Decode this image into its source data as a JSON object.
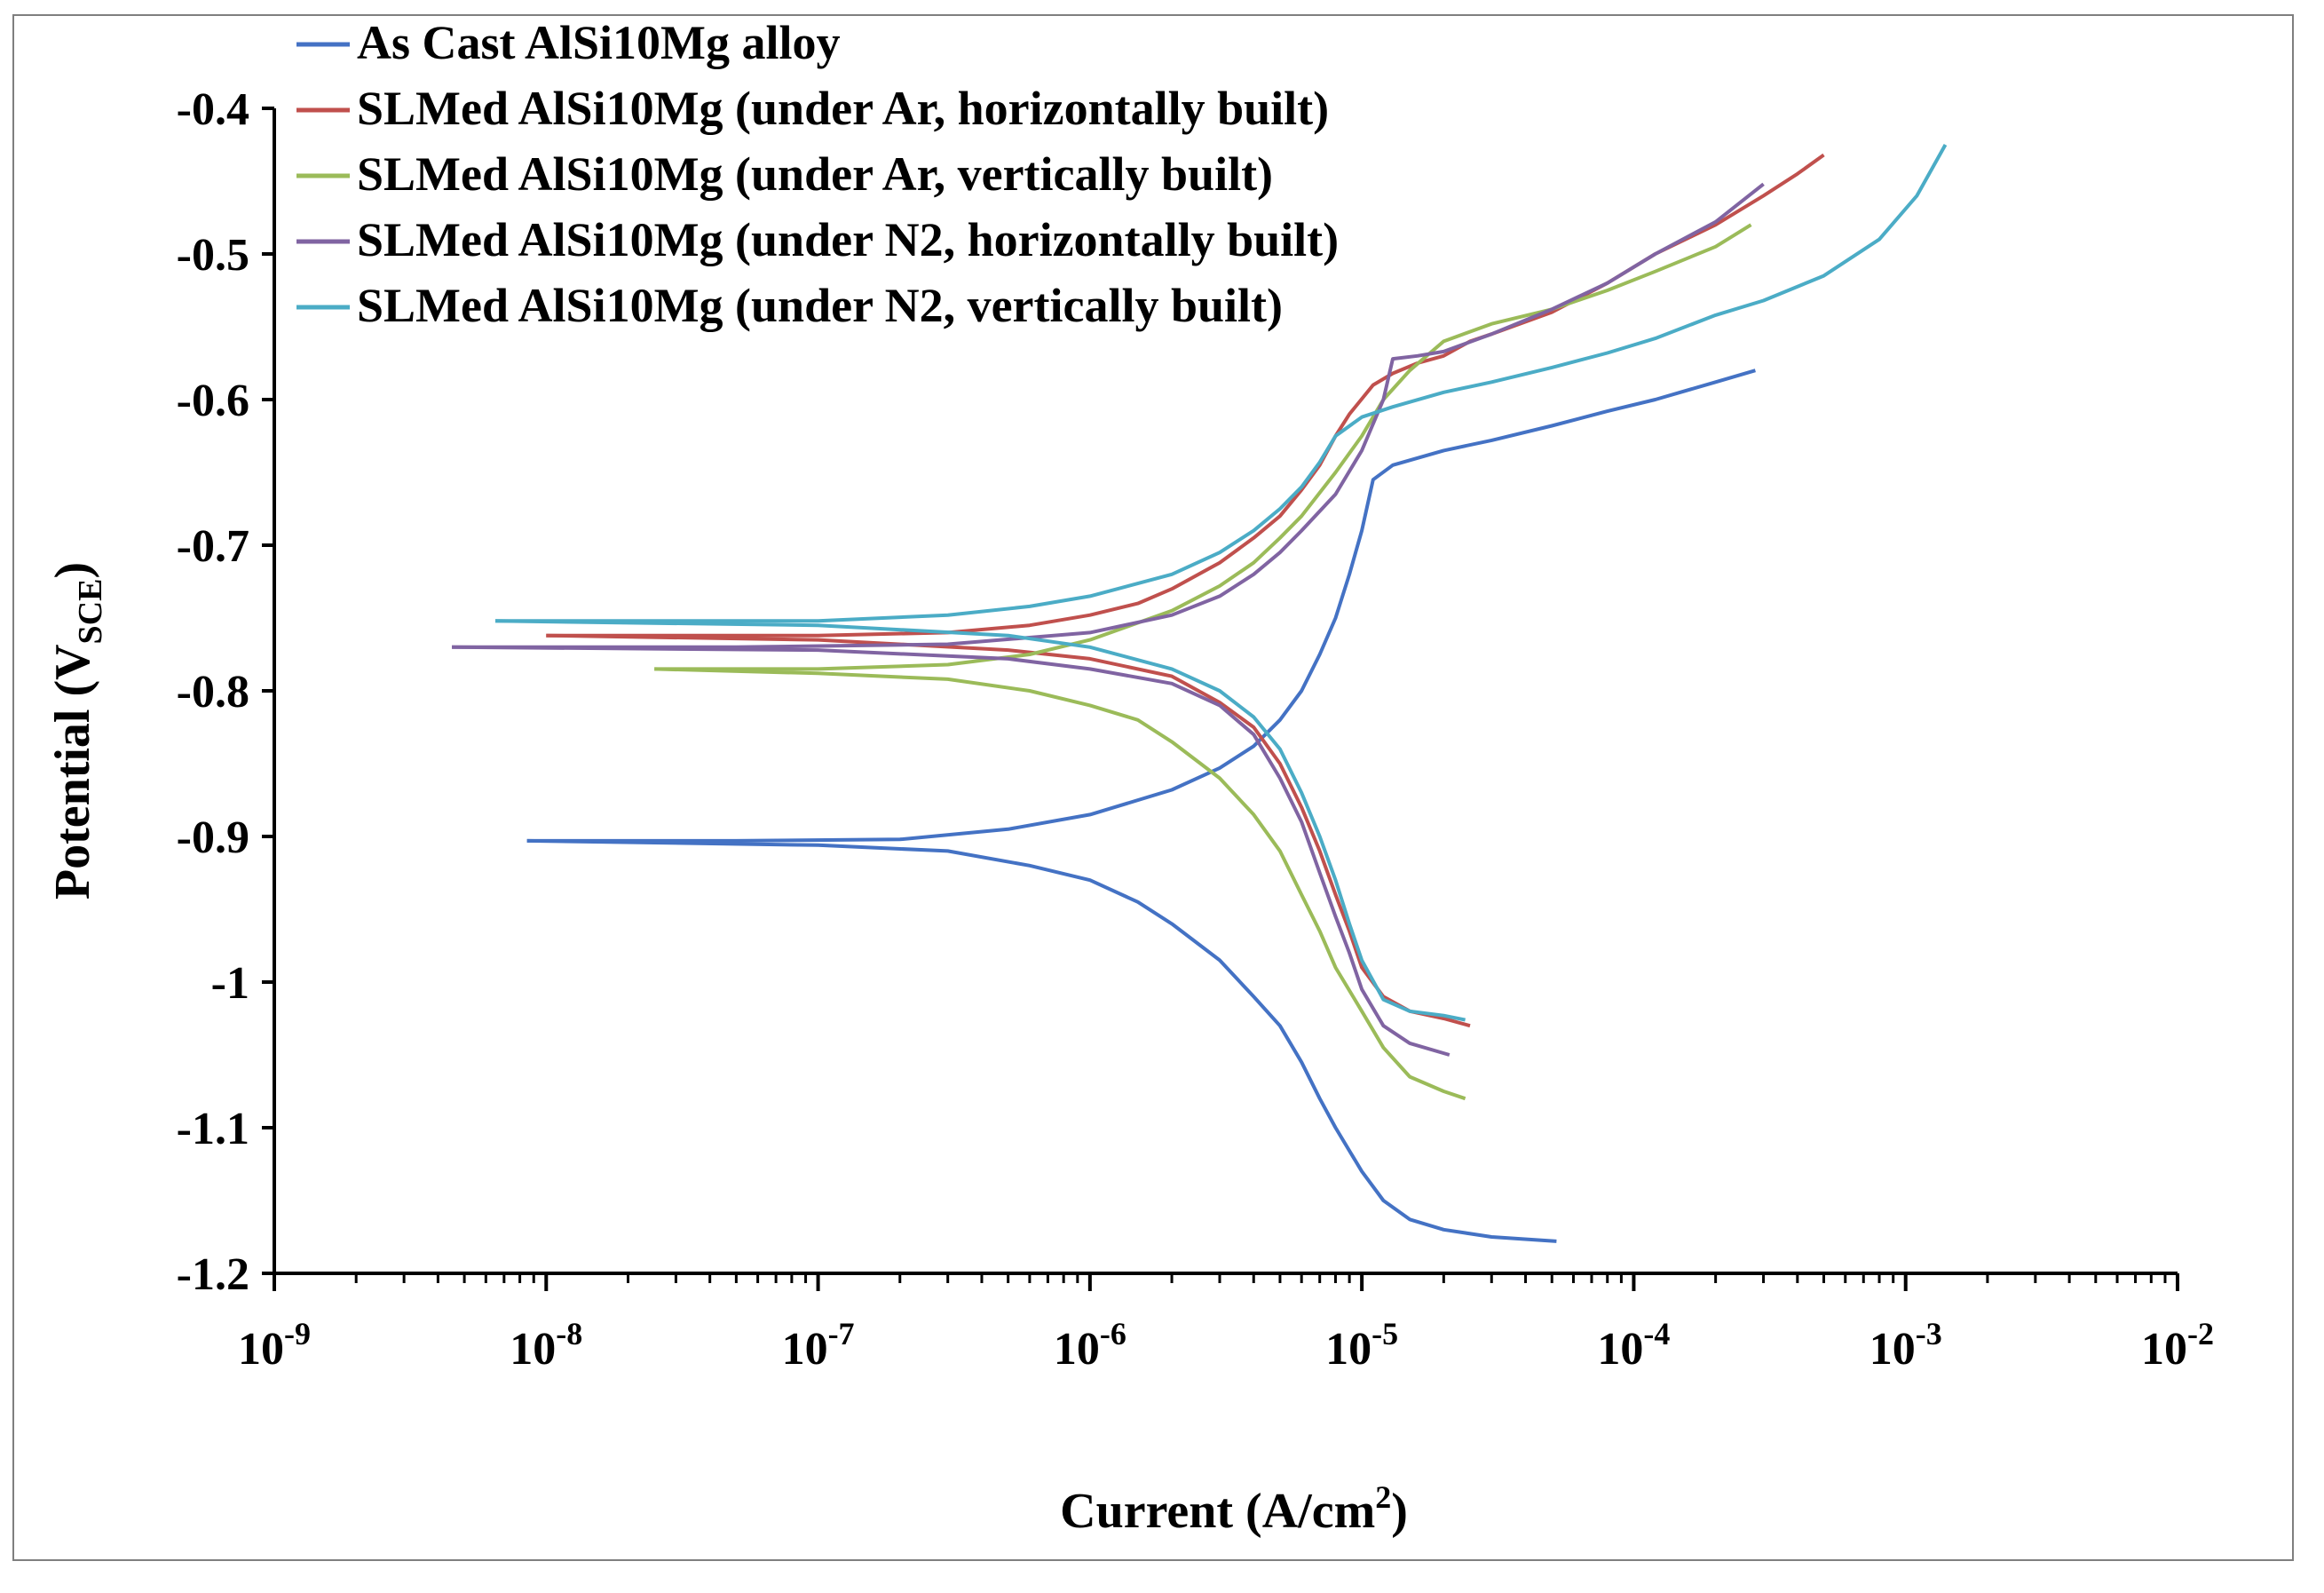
{
  "chart_data": {
    "type": "line",
    "title": "",
    "xlabel": "Current (A/cm",
    "xlabel_sup": "2",
    "xlabel_close": ")",
    "ylabel": "Potential (V",
    "ylabel_sub": "SCE",
    "ylabel_close": ")",
    "xscale": "log",
    "xlim": [
      1e-09,
      0.01
    ],
    "ylim": [
      -1.2,
      -0.4
    ],
    "x_ticks": [
      {
        "base": "10",
        "exp": "-9",
        "value": 1e-09
      },
      {
        "base": "10",
        "exp": "-8",
        "value": 1e-08
      },
      {
        "base": "10",
        "exp": "-7",
        "value": 1e-07
      },
      {
        "base": "10",
        "exp": "-6",
        "value": 1e-06
      },
      {
        "base": "10",
        "exp": "-5",
        "value": 1e-05
      },
      {
        "base": "10",
        "exp": "-4",
        "value": 0.0001
      },
      {
        "base": "10",
        "exp": "-3",
        "value": 0.001
      },
      {
        "base": "10",
        "exp": "-2",
        "value": 0.01
      }
    ],
    "y_ticks": [
      "-0.4",
      "-0.5",
      "-0.6",
      "-0.7",
      "-0.8",
      "-0.9",
      "-1",
      "-1.1",
      "-1.2"
    ],
    "grid": false,
    "legend_position": "top-left",
    "series": [
      {
        "name": "As Cast AlSi10Mg alloy",
        "color": "#4472C4",
        "branches": [
          [
            [
              8.5e-09,
              -0.903
            ],
            [
              5e-08,
              -0.903
            ],
            [
              2e-07,
              -0.902
            ],
            [
              5e-07,
              -0.895
            ],
            [
              1e-06,
              -0.885
            ],
            [
              2e-06,
              -0.868
            ],
            [
              3e-06,
              -0.853
            ],
            [
              4e-06,
              -0.838
            ],
            [
              5e-06,
              -0.82
            ],
            [
              6e-06,
              -0.8
            ],
            [
              7e-06,
              -0.775
            ],
            [
              8e-06,
              -0.75
            ],
            [
              9e-06,
              -0.72
            ],
            [
              1e-05,
              -0.69
            ],
            [
              1.1e-05,
              -0.655
            ],
            [
              1.3e-05,
              -0.645
            ],
            [
              2e-05,
              -0.635
            ],
            [
              3e-05,
              -0.628
            ],
            [
              5e-05,
              -0.618
            ],
            [
              8e-05,
              -0.608
            ],
            [
              0.00012,
              -0.6
            ],
            [
              0.0002,
              -0.588
            ],
            [
              0.00028,
              -0.58
            ]
          ],
          [
            [
              8.5e-09,
              -0.903
            ],
            [
              1e-07,
              -0.906
            ],
            [
              3e-07,
              -0.91
            ],
            [
              6e-07,
              -0.92
            ],
            [
              1e-06,
              -0.93
            ],
            [
              1.5e-06,
              -0.945
            ],
            [
              2e-06,
              -0.96
            ],
            [
              3e-06,
              -0.985
            ],
            [
              4e-06,
              -1.01
            ],
            [
              5e-06,
              -1.03
            ],
            [
              6e-06,
              -1.055
            ],
            [
              7e-06,
              -1.08
            ],
            [
              8e-06,
              -1.1
            ],
            [
              1e-05,
              -1.13
            ],
            [
              1.2e-05,
              -1.15
            ],
            [
              1.5e-05,
              -1.163
            ],
            [
              2e-05,
              -1.17
            ],
            [
              3e-05,
              -1.175
            ],
            [
              5.2e-05,
              -1.178
            ]
          ]
        ]
      },
      {
        "name": "SLMed AlSi10Mg (under Ar, horizontally built)",
        "color": "#C0504D",
        "branches": [
          [
            [
              1e-08,
              -0.762
            ],
            [
              1e-07,
              -0.762
            ],
            [
              3e-07,
              -0.76
            ],
            [
              6e-07,
              -0.755
            ],
            [
              1e-06,
              -0.748
            ],
            [
              1.5e-06,
              -0.74
            ],
            [
              2e-06,
              -0.73
            ],
            [
              3e-06,
              -0.712
            ],
            [
              4e-06,
              -0.695
            ],
            [
              5e-06,
              -0.68
            ],
            [
              6e-06,
              -0.662
            ],
            [
              7e-06,
              -0.645
            ],
            [
              8e-06,
              -0.625
            ],
            [
              9e-06,
              -0.61
            ],
            [
              1.1e-05,
              -0.59
            ],
            [
              1.3e-05,
              -0.582
            ],
            [
              1.6e-05,
              -0.575
            ],
            [
              2e-05,
              -0.57
            ],
            [
              2.5e-05,
              -0.56
            ],
            [
              3e-05,
              -0.555
            ],
            [
              5e-05,
              -0.54
            ],
            [
              8e-05,
              -0.52
            ],
            [
              0.00012,
              -0.5
            ],
            [
              0.0002,
              -0.48
            ],
            [
              0.0003,
              -0.46
            ],
            [
              0.0004,
              -0.445
            ],
            [
              0.0005,
              -0.432
            ]
          ],
          [
            [
              1e-08,
              -0.762
            ],
            [
              1e-07,
              -0.765
            ],
            [
              5e-07,
              -0.772
            ],
            [
              1e-06,
              -0.778
            ],
            [
              2e-06,
              -0.79
            ],
            [
              3e-06,
              -0.808
            ],
            [
              4e-06,
              -0.825
            ],
            [
              5e-06,
              -0.85
            ],
            [
              6e-06,
              -0.88
            ],
            [
              7e-06,
              -0.91
            ],
            [
              8e-06,
              -0.94
            ],
            [
              9e-06,
              -0.965
            ],
            [
              1e-05,
              -0.99
            ],
            [
              1.2e-05,
              -1.01
            ],
            [
              1.5e-05,
              -1.02
            ],
            [
              2e-05,
              -1.025
            ],
            [
              2.5e-05,
              -1.03
            ]
          ]
        ]
      },
      {
        "name": "SLMed AlSi10Mg (under Ar, vertically built)",
        "color": "#9BBB59",
        "branches": [
          [
            [
              2.5e-08,
              -0.785
            ],
            [
              1e-07,
              -0.785
            ],
            [
              3e-07,
              -0.782
            ],
            [
              6e-07,
              -0.775
            ],
            [
              1e-06,
              -0.765
            ],
            [
              2e-06,
              -0.745
            ],
            [
              3e-06,
              -0.728
            ],
            [
              4e-06,
              -0.712
            ],
            [
              5e-06,
              -0.695
            ],
            [
              6e-06,
              -0.68
            ],
            [
              8e-06,
              -0.65
            ],
            [
              1e-05,
              -0.625
            ],
            [
              1.2e-05,
              -0.6
            ],
            [
              1.5e-05,
              -0.58
            ],
            [
              2e-05,
              -0.56
            ],
            [
              3e-05,
              -0.548
            ],
            [
              5e-05,
              -0.538
            ],
            [
              8e-05,
              -0.525
            ],
            [
              0.00012,
              -0.512
            ],
            [
              0.0002,
              -0.495
            ],
            [
              0.00027,
              -0.48
            ]
          ],
          [
            [
              2.5e-08,
              -0.785
            ],
            [
              1e-07,
              -0.788
            ],
            [
              3e-07,
              -0.792
            ],
            [
              6e-07,
              -0.8
            ],
            [
              1e-06,
              -0.81
            ],
            [
              1.5e-06,
              -0.82
            ],
            [
              2e-06,
              -0.835
            ],
            [
              3e-06,
              -0.86
            ],
            [
              4e-06,
              -0.885
            ],
            [
              5e-06,
              -0.91
            ],
            [
              6e-06,
              -0.94
            ],
            [
              7e-06,
              -0.965
            ],
            [
              8e-06,
              -0.99
            ],
            [
              1e-05,
              -1.02
            ],
            [
              1.2e-05,
              -1.045
            ],
            [
              1.5e-05,
              -1.065
            ],
            [
              2e-05,
              -1.075
            ],
            [
              2.4e-05,
              -1.08
            ]
          ]
        ]
      },
      {
        "name": "SLMed AlSi10Mg (under N2, horizontally built)",
        "color": "#8064A2",
        "branches": [
          [
            [
              4.5e-09,
              -0.77
            ],
            [
              5e-08,
              -0.77
            ],
            [
              3e-07,
              -0.768
            ],
            [
              1e-06,
              -0.76
            ],
            [
              2e-06,
              -0.748
            ],
            [
              3e-06,
              -0.735
            ],
            [
              4e-06,
              -0.72
            ],
            [
              5e-06,
              -0.705
            ],
            [
              6e-06,
              -0.69
            ],
            [
              8e-06,
              -0.665
            ],
            [
              1e-05,
              -0.635
            ],
            [
              1.2e-05,
              -0.6
            ],
            [
              1.3e-05,
              -0.572
            ],
            [
              1.6e-05,
              -0.57
            ],
            [
              2e-05,
              -0.567
            ],
            [
              3e-05,
              -0.555
            ],
            [
              5e-05,
              -0.538
            ],
            [
              8e-05,
              -0.52
            ],
            [
              0.00012,
              -0.5
            ],
            [
              0.0002,
              -0.478
            ],
            [
              0.0003,
              -0.452
            ]
          ],
          [
            [
              4.5e-09,
              -0.77
            ],
            [
              1e-07,
              -0.772
            ],
            [
              5e-07,
              -0.778
            ],
            [
              1e-06,
              -0.785
            ],
            [
              2e-06,
              -0.795
            ],
            [
              3e-06,
              -0.81
            ],
            [
              4e-06,
              -0.83
            ],
            [
              5e-06,
              -0.86
            ],
            [
              6e-06,
              -0.89
            ],
            [
              7e-06,
              -0.925
            ],
            [
              8e-06,
              -0.955
            ],
            [
              9e-06,
              -0.98
            ],
            [
              1e-05,
              -1.005
            ],
            [
              1.2e-05,
              -1.03
            ],
            [
              1.5e-05,
              -1.042
            ],
            [
              2.1e-05,
              -1.05
            ]
          ]
        ]
      },
      {
        "name": "SLMed AlSi10Mg (under N2, vertically built)",
        "color": "#4BACC6",
        "branches": [
          [
            [
              6.5e-09,
              -0.752
            ],
            [
              1e-07,
              -0.752
            ],
            [
              3e-07,
              -0.748
            ],
            [
              6e-07,
              -0.742
            ],
            [
              1e-06,
              -0.735
            ],
            [
              2e-06,
              -0.72
            ],
            [
              3e-06,
              -0.705
            ],
            [
              4e-06,
              -0.69
            ],
            [
              5e-06,
              -0.675
            ],
            [
              6e-06,
              -0.66
            ],
            [
              7e-06,
              -0.643
            ],
            [
              8e-06,
              -0.625
            ],
            [
              1e-05,
              -0.612
            ],
            [
              1.3e-05,
              -0.605
            ],
            [
              2e-05,
              -0.595
            ],
            [
              3e-05,
              -0.588
            ],
            [
              5e-05,
              -0.578
            ],
            [
              8e-05,
              -0.568
            ],
            [
              0.00012,
              -0.558
            ],
            [
              0.0002,
              -0.542
            ],
            [
              0.0003,
              -0.532
            ],
            [
              0.0005,
              -0.515
            ],
            [
              0.0008,
              -0.49
            ],
            [
              0.0011,
              -0.46
            ],
            [
              0.0014,
              -0.425
            ]
          ],
          [
            [
              6.5e-09,
              -0.752
            ],
            [
              1e-07,
              -0.755
            ],
            [
              5e-07,
              -0.762
            ],
            [
              1e-06,
              -0.77
            ],
            [
              2e-06,
              -0.785
            ],
            [
              3e-06,
              -0.8
            ],
            [
              4e-06,
              -0.818
            ],
            [
              5e-06,
              -0.84
            ],
            [
              6e-06,
              -0.87
            ],
            [
              7e-06,
              -0.9
            ],
            [
              8e-06,
              -0.93
            ],
            [
              9e-06,
              -0.96
            ],
            [
              1e-05,
              -0.985
            ],
            [
              1.2e-05,
              -1.012
            ],
            [
              1.5e-05,
              -1.02
            ],
            [
              2e-05,
              -1.023
            ],
            [
              2.4e-05,
              -1.026
            ]
          ]
        ]
      }
    ]
  }
}
